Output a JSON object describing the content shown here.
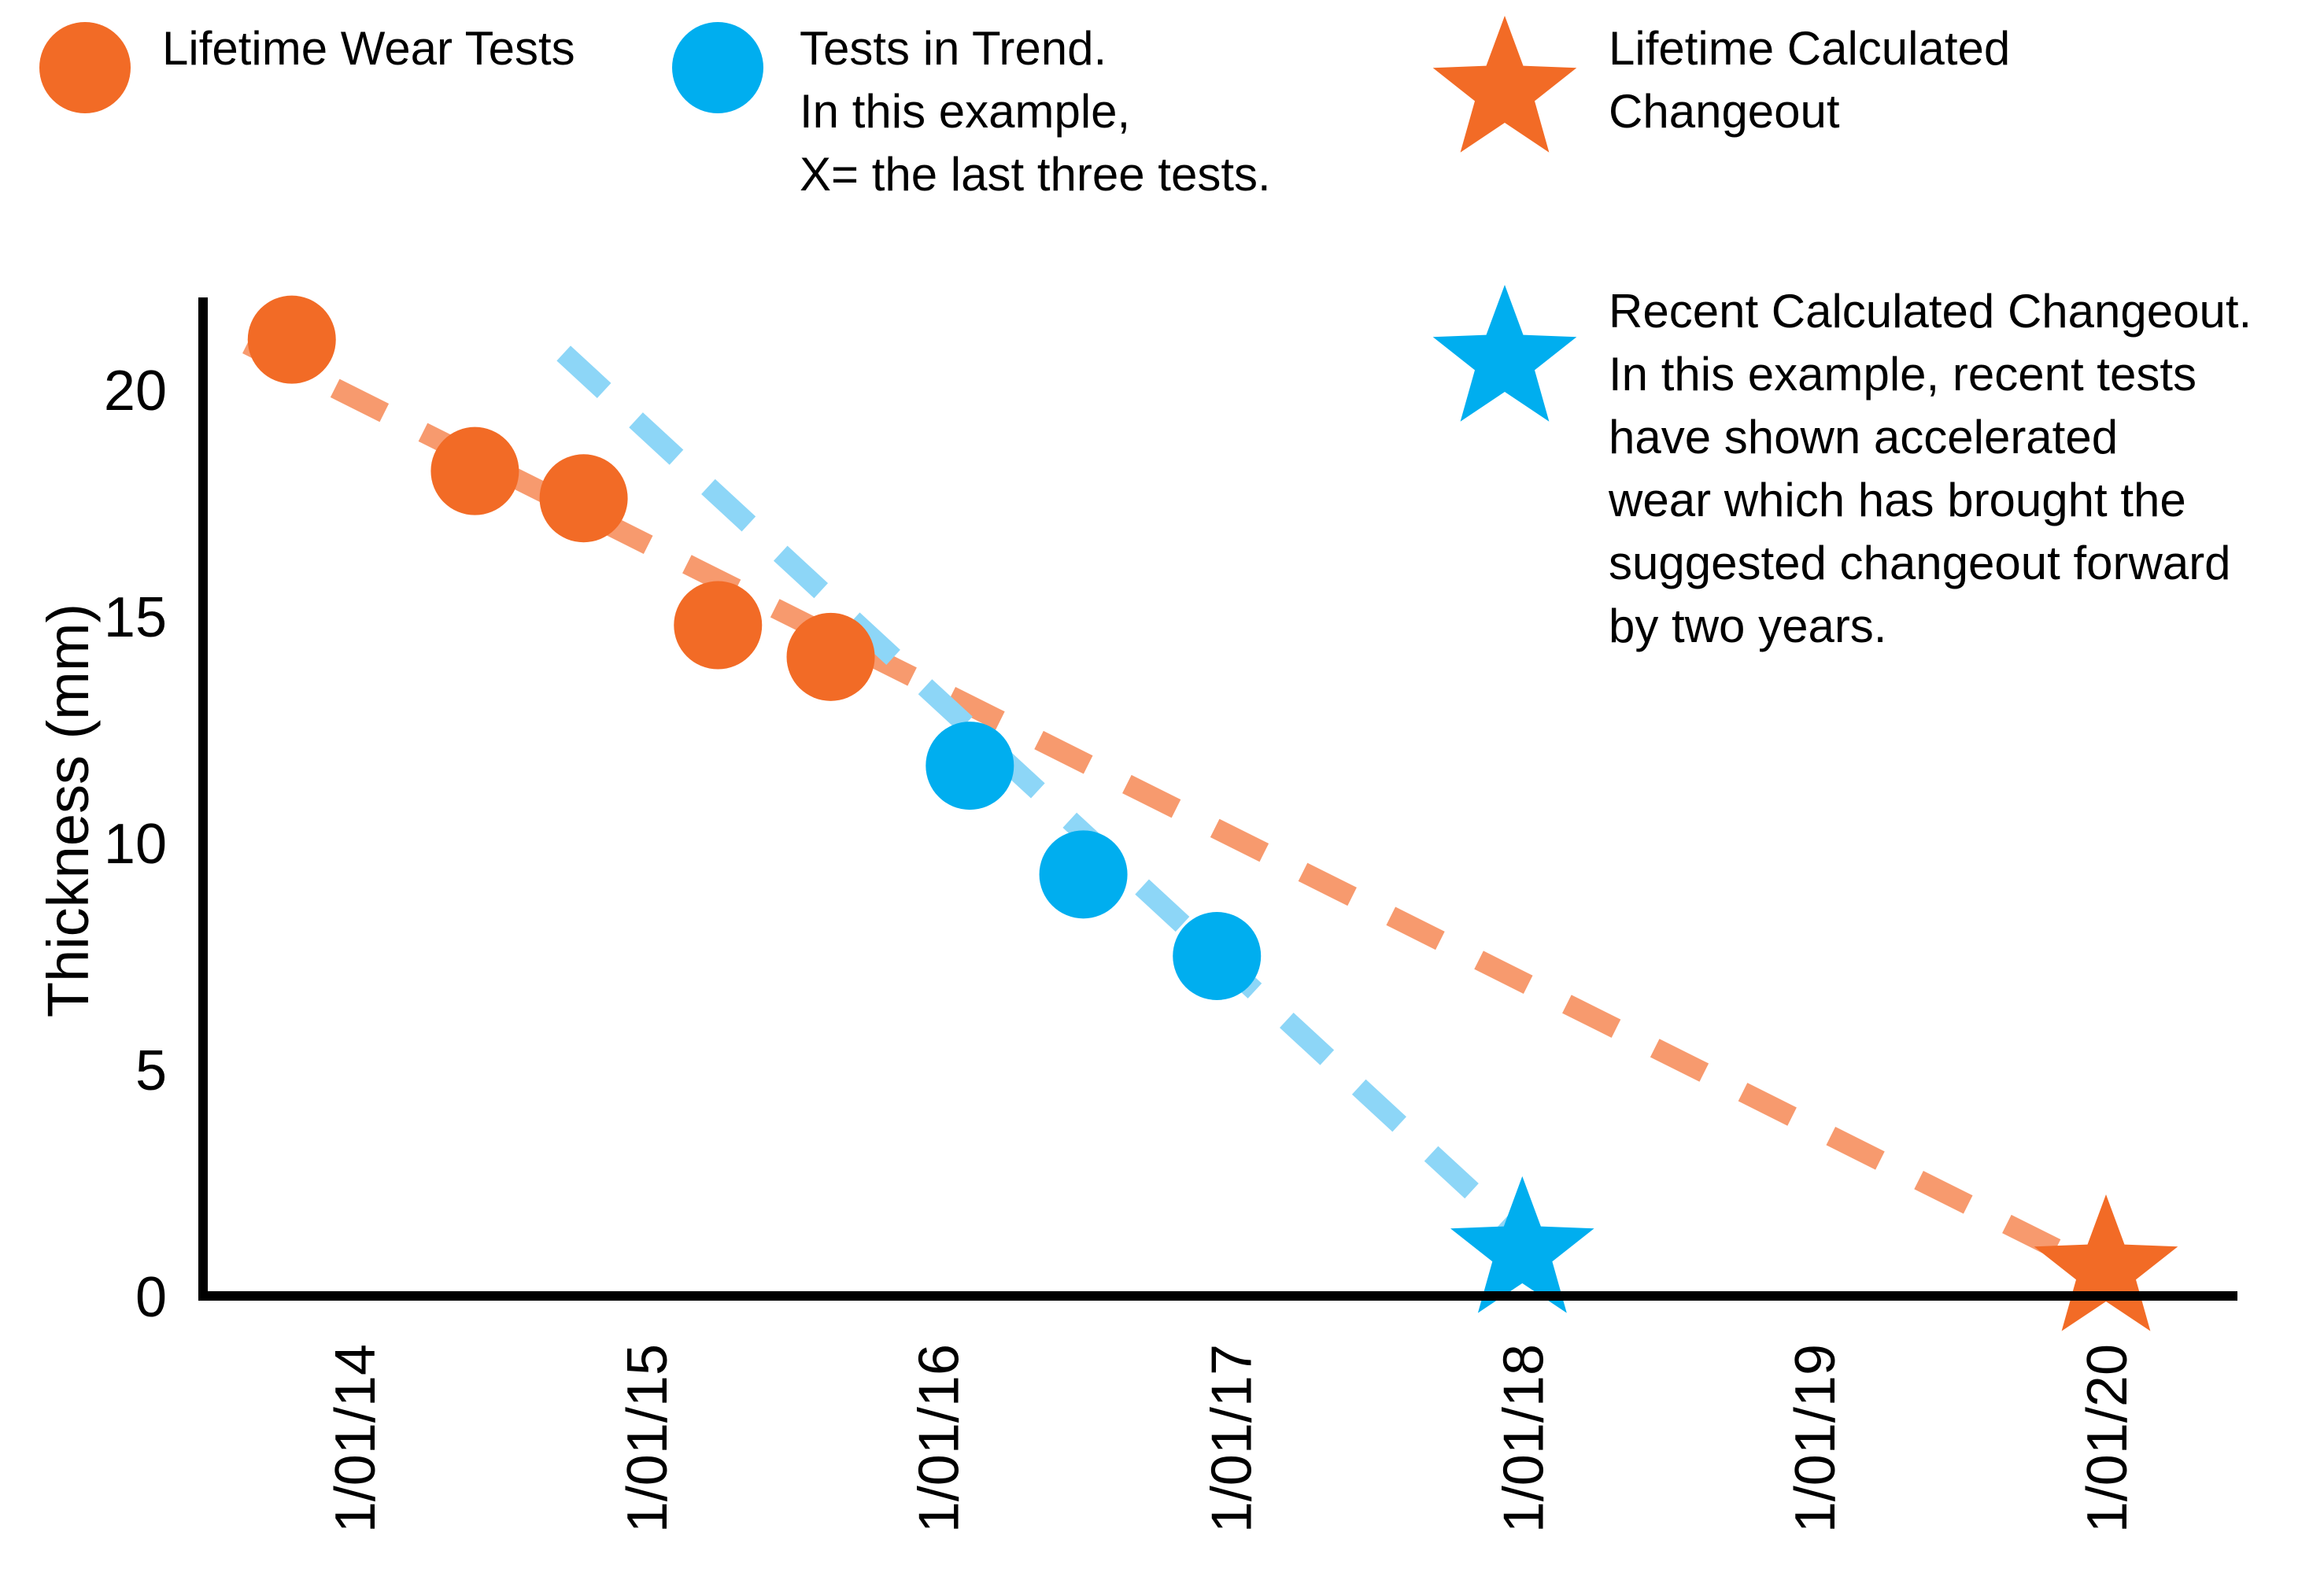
{
  "chart_data": {
    "type": "scatter",
    "title": "",
    "xlabel": "",
    "ylabel": "Thickness (mm)",
    "ylim": [
      0,
      22
    ],
    "xlim": [
      "2013-09-01",
      "2020-07-01"
    ],
    "x_tick_labels": [
      "1/01/14",
      "1/01/15",
      "1/01/16",
      "1/01/17",
      "1/01/18",
      "1/01/19",
      "1/01/20"
    ],
    "x_tick_dates": [
      "2014-01-01",
      "2015-01-01",
      "2016-01-01",
      "2017-01-01",
      "2018-01-01",
      "2019-01-01",
      "2020-01-01"
    ],
    "y_ticks": [
      0,
      5,
      10,
      15,
      20
    ],
    "grid": false,
    "legend_placement": "top",
    "series": [
      {
        "name": "Lifetime Wear Tests",
        "color": "#f26b26",
        "marker": "circle",
        "points": [
          {
            "x": "2013-10-15",
            "y": 21.1
          },
          {
            "x": "2014-06-01",
            "y": 18.2
          },
          {
            "x": "2014-10-15",
            "y": 17.6
          },
          {
            "x": "2015-04-01",
            "y": 14.8
          },
          {
            "x": "2015-08-20",
            "y": 14.1
          }
        ]
      },
      {
        "name": "Tests in Trend.\nIn this example,\nX= the last three tests.",
        "color": "#00aeef",
        "marker": "circle",
        "points": [
          {
            "x": "2016-02-10",
            "y": 11.7
          },
          {
            "x": "2016-07-01",
            "y": 9.3
          },
          {
            "x": "2016-12-15",
            "y": 7.5
          }
        ]
      },
      {
        "name": "Lifetime Calculated\nChangeout",
        "color": "#f26b26",
        "marker": "star",
        "points": [
          {
            "x": "2020-01-01",
            "y": 0.4
          }
        ]
      },
      {
        "name": "Recent Calculated Changeout.\nIn this example, recent tests\nhave shown accelerated\nwear which has brought the\nsuggested changeout forward\nby two years.",
        "color": "#00aeef",
        "marker": "star",
        "points": [
          {
            "x": "2018-01-01",
            "y": 0.8
          }
        ]
      }
    ],
    "trend_lines": [
      {
        "color": "#f79a6e",
        "style": "dashed",
        "points": [
          {
            "x": "2013-08-20",
            "y": 21.0
          },
          {
            "x": "2019-12-20",
            "y": 0.6
          }
        ]
      },
      {
        "color": "#8dd6f7",
        "style": "dashed",
        "points": [
          {
            "x": "2014-09-20",
            "y": 20.8
          },
          {
            "x": "2017-12-25",
            "y": 1.4
          }
        ]
      }
    ]
  }
}
